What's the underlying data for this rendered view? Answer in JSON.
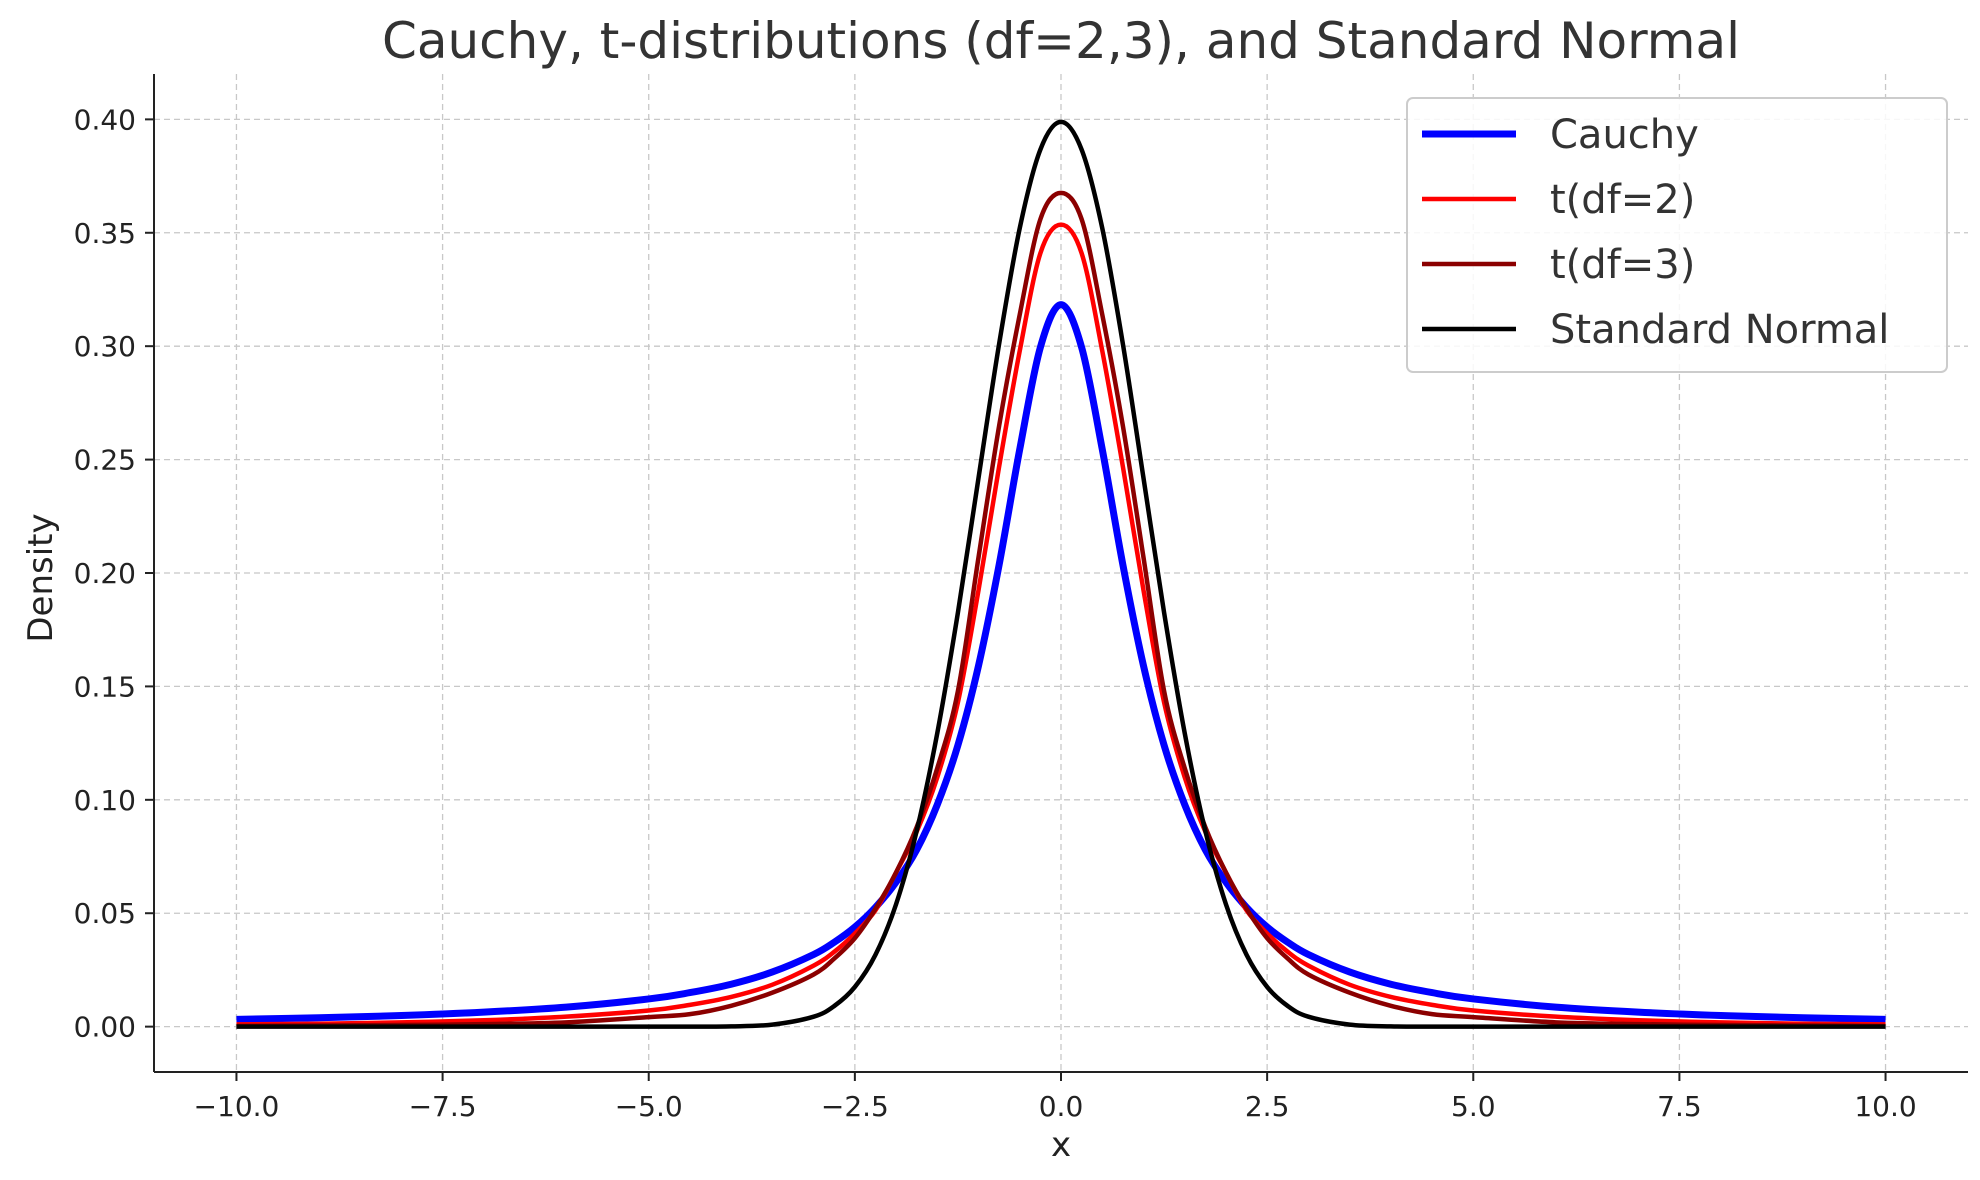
{
  "chart_data": {
    "type": "line",
    "title": "Cauchy, t-distributions (df=2,3), and Standard Normal",
    "xlabel": "x",
    "ylabel": "Density",
    "xlim": [
      -11,
      11
    ],
    "ylim": [
      -0.02,
      0.42
    ],
    "xticks": [
      -10,
      -7.5,
      -5,
      -2.5,
      0,
      2.5,
      5,
      7.5,
      10
    ],
    "xtick_labels": [
      "−10.0",
      "−7.5",
      "−5.0",
      "−2.5",
      "0.0",
      "2.5",
      "5.0",
      "7.5",
      "10.0"
    ],
    "yticks": [
      0,
      0.05,
      0.1,
      0.15,
      0.2,
      0.25,
      0.3,
      0.35,
      0.4
    ],
    "ytick_labels": [
      "0.00",
      "0.05",
      "0.10",
      "0.15",
      "0.20",
      "0.25",
      "0.30",
      "0.35",
      "0.40"
    ],
    "grid": true,
    "legend_position": "top-right",
    "x": [
      -10,
      -9,
      -8,
      -7,
      -6,
      -5,
      -4.5,
      -4,
      -3.5,
      -3,
      -2.75,
      -2.5,
      -2.25,
      -2,
      -1.75,
      -1.5,
      -1.25,
      -1,
      -0.75,
      -0.5,
      -0.25,
      0,
      0.25,
      0.5,
      0.75,
      1,
      1.25,
      1.5,
      1.75,
      2,
      2.25,
      2.5,
      2.75,
      3,
      3.5,
      4,
      4.5,
      5,
      6,
      7,
      8,
      9,
      10
    ],
    "series": [
      {
        "name": "Cauchy",
        "color": "#0000ff",
        "width": 7,
        "values": [
          0.0032,
          0.0039,
          0.0049,
          0.0064,
          0.0086,
          0.0122,
          0.015,
          0.0187,
          0.0241,
          0.0318,
          0.0372,
          0.0439,
          0.0526,
          0.0637,
          0.078,
          0.0979,
          0.1241,
          0.1592,
          0.2037,
          0.2546,
          0.2995,
          0.3183,
          0.2995,
          0.2546,
          0.2037,
          0.1592,
          0.1241,
          0.0979,
          0.078,
          0.0637,
          0.0526,
          0.0439,
          0.0372,
          0.0318,
          0.0241,
          0.0187,
          0.015,
          0.0122,
          0.0086,
          0.0064,
          0.0049,
          0.0039,
          0.0032
        ]
      },
      {
        "name": "t(df=2)",
        "color": "#ff0000",
        "width": 4.5,
        "values": [
          0.001,
          0.0013,
          0.0019,
          0.0028,
          0.0044,
          0.0071,
          0.0096,
          0.0131,
          0.0185,
          0.0269,
          0.033,
          0.0411,
          0.0513,
          0.068,
          0.086,
          0.11,
          0.143,
          0.1925,
          0.247,
          0.298,
          0.341,
          0.3536,
          0.341,
          0.298,
          0.247,
          0.1925,
          0.143,
          0.11,
          0.086,
          0.068,
          0.0513,
          0.0411,
          0.033,
          0.0269,
          0.0185,
          0.0131,
          0.0096,
          0.0071,
          0.0044,
          0.0028,
          0.0019,
          0.0013,
          0.001
        ]
      },
      {
        "name": "t(df=3)",
        "color": "#8b0000",
        "width": 4.5,
        "values": [
          0.0003,
          0.0005,
          0.0007,
          0.0011,
          0.0019,
          0.0042,
          0.0055,
          0.0092,
          0.015,
          0.023,
          0.03,
          0.039,
          0.052,
          0.068,
          0.088,
          0.114,
          0.148,
          0.207,
          0.265,
          0.314,
          0.356,
          0.3676,
          0.356,
          0.314,
          0.265,
          0.207,
          0.148,
          0.114,
          0.088,
          0.068,
          0.052,
          0.039,
          0.03,
          0.023,
          0.015,
          0.0092,
          0.0055,
          0.0042,
          0.0019,
          0.0011,
          0.0007,
          0.0005,
          0.0003
        ]
      },
      {
        "name": "Standard Normal",
        "color": "#000000",
        "width": 4.5,
        "values": [
          0.0,
          0.0,
          0.0,
          0.0,
          0.0,
          0.0,
          0.0,
          0.0001,
          0.0009,
          0.0044,
          0.0091,
          0.0175,
          0.0317,
          0.054,
          0.0863,
          0.1295,
          0.1826,
          0.242,
          0.3011,
          0.3521,
          0.3867,
          0.3989,
          0.3867,
          0.3521,
          0.3011,
          0.242,
          0.1826,
          0.1295,
          0.0863,
          0.054,
          0.0317,
          0.0175,
          0.0091,
          0.0044,
          0.0009,
          0.0001,
          0.0,
          0.0,
          0.0,
          0.0,
          0.0,
          0.0,
          0.0
        ]
      }
    ]
  }
}
